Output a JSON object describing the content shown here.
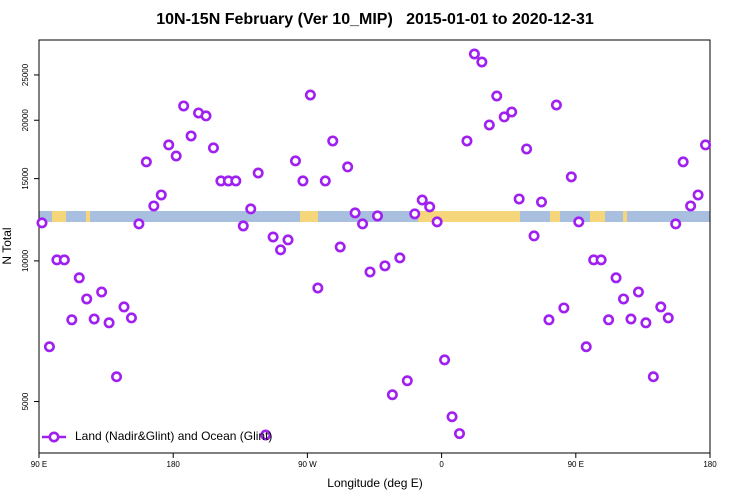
{
  "chart_data": {
    "type": "scatter",
    "title": "10N-15N February (Ver 10_MIP)   2015-01-01 to 2020-12-31",
    "x_label": "Longitude (deg E)",
    "y_label": "N Total",
    "yscale": "log",
    "legend": "bottom-left",
    "xlim": [
      90,
      540
    ],
    "ylim": [
      3880,
      29700
    ],
    "xticks": [
      {
        "value": 90,
        "label": "90 E"
      },
      {
        "value": 180,
        "label": "180"
      },
      {
        "value": 270,
        "label": "90 W"
      },
      {
        "value": 360,
        "label": "0"
      },
      {
        "value": 450,
        "label": "90 E"
      },
      {
        "value": 540,
        "label": "180"
      }
    ],
    "yticks": [
      5000,
      10000,
      15000,
      20000,
      25000
    ],
    "x": [
      92,
      97,
      102,
      107,
      112,
      117,
      122,
      127,
      132,
      137,
      142,
      147,
      152,
      157,
      162,
      167,
      172,
      177,
      182,
      187,
      192,
      197,
      202,
      207,
      212,
      217,
      222,
      227,
      232,
      237,
      242,
      247,
      252,
      257,
      262,
      267,
      272,
      277,
      282,
      287,
      292,
      297,
      302,
      307,
      312,
      317,
      322,
      327,
      332,
      337,
      342,
      347,
      352,
      357,
      362,
      367,
      372,
      377,
      382,
      387,
      392,
      397,
      402,
      407,
      412,
      417,
      422,
      427,
      432,
      437,
      442,
      447,
      452,
      457,
      462,
      467,
      472,
      477,
      482,
      487,
      492,
      497,
      502,
      507,
      512,
      517,
      522,
      527,
      532,
      537
    ],
    "series": [
      {
        "name": "Land (Nadir&Glint) and Ocean (Glint)",
        "color": "#a020f0",
        "values": [
          12060,
          6550,
          10050,
          10050,
          7480,
          9200,
          8290,
          7510,
          8580,
          7370,
          5650,
          7970,
          7550,
          12000,
          16290,
          13110,
          13840,
          17710,
          16770,
          21460,
          18510,
          20730,
          20430,
          17450,
          14830,
          14830,
          14830,
          11880,
          12920,
          15420,
          4240,
          11250,
          10560,
          11090,
          16370,
          14830,
          22650,
          8750,
          14830,
          18060,
          10710,
          15890,
          12670,
          12000,
          9470,
          12480,
          9760,
          5170,
          10150,
          5540,
          12610,
          13500,
          13050,
          12120,
          6140,
          4640,
          4270,
          18060,
          27720,
          26650,
          19540,
          22540,
          20330,
          20830,
          13570,
          17360,
          11310,
          13370,
          7480,
          21560,
          7930,
          15130,
          12120,
          6550,
          10050,
          10050,
          7480,
          9200,
          8290,
          7510,
          8580,
          7370,
          5650,
          7970,
          7550,
          12000,
          16290,
          13110,
          13840,
          17710
        ]
      }
    ]
  }
}
